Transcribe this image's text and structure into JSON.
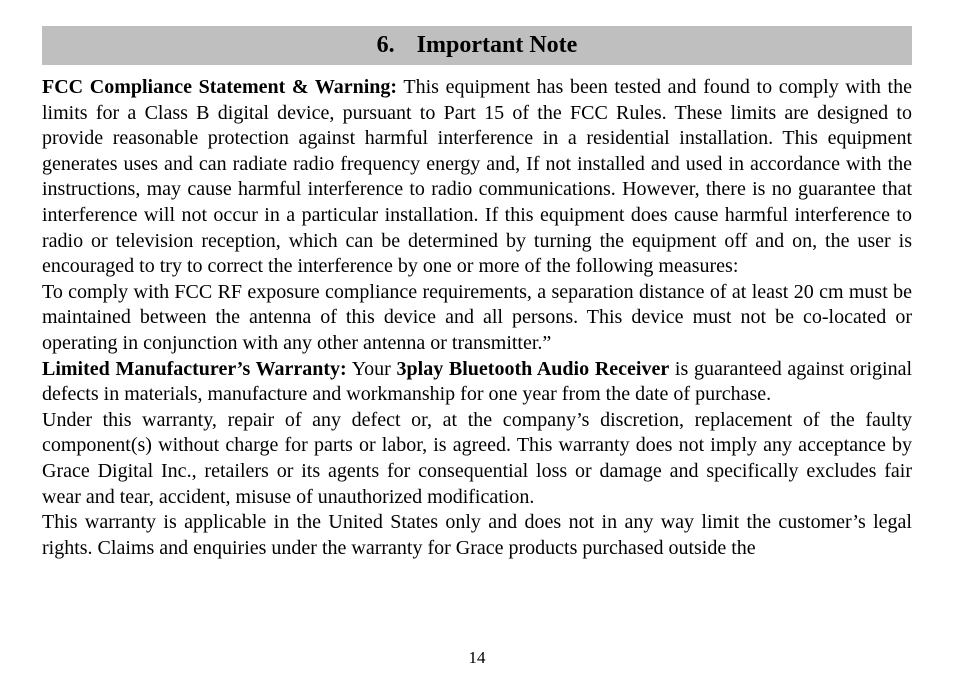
{
  "heading": {
    "number": "6.",
    "title": "Important Note",
    "bg_color": "#bfbfbf",
    "font_size_pt": 18
  },
  "body": {
    "font_size_pt": 15,
    "text_color": "#000000",
    "paragraphs": {
      "p1_lead_bold": "FCC Compliance Statement & Warning:",
      "p1_rest": "  This equipment has been tested and found to comply with the limits for a Class B digital device, pursuant to Part 15 of the FCC Rules.  These limits are designed to provide reasonable protection against harmful interference in a residential installation.  This equipment generates uses and can radiate radio frequency energy and, If not installed and used in accordance with the instructions, may cause harmful interference to radio communications.  However, there is no guarantee that interference will not occur in a particular installation.  If this equipment does cause harmful interference to radio or television reception, which can be determined by turning the equipment off and on, the user is encouraged to try to correct the interference by one or more of the following measures:",
      "p2": "To comply with FCC RF exposure compliance requirements, a separation distance of at least 20 cm must be maintained between the antenna of this device and all persons.  This device must not be co-located or operating in conjunction with any other antenna or transmitter.”",
      "p3_lead_bold": "Limited Manufacturer’s Warranty:",
      "p3_mid": "  Your ",
      "p3_product_bold": "3play Bluetooth Audio Receiver",
      "p3_rest": " is guaranteed against original defects in materials, manufacture and workmanship for one year from the date of purchase.",
      "p4": "Under this warranty, repair of any defect or, at the company’s discretion, replacement of the faulty component(s) without charge for parts or labor, is agreed.  This warranty does not imply any acceptance by Grace Digital Inc., retailers or its agents for consequential loss or damage and specifically excludes fair wear and tear, accident, misuse of unauthorized modification.",
      "p5": "This warranty is applicable in the United States only and does not in any way limit the customer’s legal rights. Claims and enquiries under the warranty for Grace products purchased outside the"
    }
  },
  "page_number": "14"
}
